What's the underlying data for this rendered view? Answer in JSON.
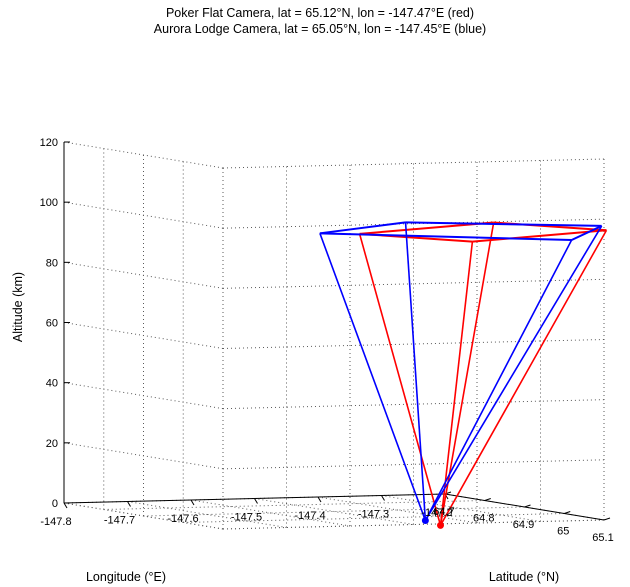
{
  "chart_data": {
    "type": "3d-line",
    "title": [
      "Poker Flat Camera, lat = 65.12°N, lon = -147.47°E (red)",
      "Aurora Lodge Camera, lat = 65.05°N, lon = -147.45°E (blue)"
    ],
    "xlabel": "Longitude (°E)",
    "ylabel": "Latitude (°N)",
    "zlabel": "Altitude (km)",
    "x_ticks": [
      "-147.8",
      "-147.7",
      "-147.6",
      "-147.5",
      "-147.4",
      "-147.3",
      "-147.2"
    ],
    "y_ticks": [
      "64.7",
      "64.8",
      "64.9",
      "65",
      "65.1"
    ],
    "z_ticks": [
      "0",
      "20",
      "40",
      "60",
      "80",
      "100",
      "120"
    ],
    "xlim": [
      -147.8,
      -147.2
    ],
    "ylim": [
      64.7,
      65.1
    ],
    "zlim": [
      0,
      120
    ],
    "grid": true,
    "series": [
      {
        "color": "#ff0000",
        "camera": {
          "lon": -147.47,
          "lat": 65.12,
          "alt": 0
        },
        "corners": [
          {
            "lon": -147.66,
            "lat": 65.22,
            "alt": 100
          },
          {
            "lon": -147.57,
            "lat": 65.36,
            "alt": 100
          },
          {
            "lon": -147.29,
            "lat": 65.25,
            "alt": 100
          },
          {
            "lon": -147.38,
            "lat": 65.11,
            "alt": 100
          }
        ]
      },
      {
        "color": "#0000ff",
        "camera": {
          "lon": -147.45,
          "lat": 65.05,
          "alt": 0
        },
        "corners": [
          {
            "lon": -147.71,
            "lat": 65.2,
            "alt": 100
          },
          {
            "lon": -147.42,
            "lat": 65.37,
            "alt": 100
          },
          {
            "lon": -147.26,
            "lat": 65.19,
            "alt": 100
          },
          {
            "lon": -147.5,
            "lat": 65.08,
            "alt": 100
          }
        ]
      }
    ]
  }
}
